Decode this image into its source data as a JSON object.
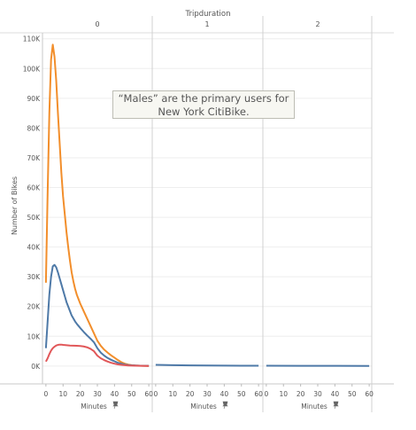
{
  "chart_data": {
    "type": "line",
    "title": "",
    "column_header": "Tripduration",
    "panels": [
      "0",
      "1",
      "2"
    ],
    "ylabel": "Number of Bikes",
    "xlabel": "Minutes",
    "ylim": [
      -6000,
      112000
    ],
    "xlim": [
      -2,
      62
    ],
    "y_ticks": [
      0,
      10000,
      20000,
      30000,
      40000,
      50000,
      60000,
      70000,
      80000,
      90000,
      100000,
      110000
    ],
    "y_tick_labels": [
      "0K",
      "10K",
      "20K",
      "30K",
      "40K",
      "50K",
      "60K",
      "70K",
      "80K",
      "90K",
      "100K",
      "110K"
    ],
    "x_ticks": [
      0,
      10,
      20,
      30,
      40,
      50,
      60
    ],
    "grid": true,
    "annotation": [
      "“Males” are the primary users for",
      "New York CitiBike."
    ],
    "series": [
      {
        "color": "#f28e2b",
        "points": [
          [
            0,
            28000
          ],
          [
            1,
            58000
          ],
          [
            2,
            85000
          ],
          [
            3,
            103000
          ],
          [
            4,
            108000
          ],
          [
            5,
            104000
          ],
          [
            6,
            96000
          ],
          [
            7,
            85000
          ],
          [
            8,
            75000
          ],
          [
            9,
            65000
          ],
          [
            10,
            57000
          ],
          [
            11,
            51000
          ],
          [
            12,
            45000
          ],
          [
            13,
            40000
          ],
          [
            14,
            35500
          ],
          [
            15,
            31500
          ],
          [
            16,
            28500
          ],
          [
            17,
            26000
          ],
          [
            18,
            24000
          ],
          [
            19,
            22500
          ],
          [
            20,
            21000
          ],
          [
            22,
            18500
          ],
          [
            24,
            16000
          ],
          [
            26,
            13500
          ],
          [
            28,
            11000
          ],
          [
            30,
            8500
          ],
          [
            32,
            6800
          ],
          [
            34,
            5500
          ],
          [
            36,
            4500
          ],
          [
            38,
            3600
          ],
          [
            40,
            2800
          ],
          [
            42,
            2000
          ],
          [
            44,
            1300
          ],
          [
            46,
            800
          ],
          [
            48,
            500
          ],
          [
            50,
            300
          ],
          [
            52,
            200
          ],
          [
            55,
            100
          ],
          [
            60,
            50
          ]
        ]
      },
      {
        "color": "#4e79a7",
        "points": [
          [
            0,
            6000
          ],
          [
            1,
            15000
          ],
          [
            2,
            24000
          ],
          [
            3,
            30000
          ],
          [
            4,
            33500
          ],
          [
            5,
            34000
          ],
          [
            6,
            33200
          ],
          [
            7,
            31500
          ],
          [
            8,
            29500
          ],
          [
            9,
            27500
          ],
          [
            10,
            25500
          ],
          [
            11,
            23500
          ],
          [
            12,
            21500
          ],
          [
            13,
            20000
          ],
          [
            14,
            18500
          ],
          [
            15,
            17000
          ],
          [
            16,
            16000
          ],
          [
            17,
            15000
          ],
          [
            18,
            14200
          ],
          [
            19,
            13500
          ],
          [
            20,
            12800
          ],
          [
            22,
            11500
          ],
          [
            24,
            10300
          ],
          [
            26,
            9200
          ],
          [
            28,
            8000
          ],
          [
            30,
            6000
          ],
          [
            32,
            4500
          ],
          [
            34,
            3500
          ],
          [
            36,
            2700
          ],
          [
            38,
            2100
          ],
          [
            40,
            1600
          ],
          [
            42,
            1100
          ],
          [
            44,
            800
          ],
          [
            46,
            500
          ],
          [
            48,
            350
          ],
          [
            50,
            250
          ],
          [
            55,
            120
          ],
          [
            60,
            80
          ]
        ]
      },
      {
        "color": "#e15759",
        "points": [
          [
            0,
            1500
          ],
          [
            1,
            2600
          ],
          [
            2,
            4000
          ],
          [
            3,
            5200
          ],
          [
            4,
            6000
          ],
          [
            5,
            6500
          ],
          [
            6,
            6900
          ],
          [
            7,
            7100
          ],
          [
            8,
            7200
          ],
          [
            9,
            7200
          ],
          [
            10,
            7100
          ],
          [
            12,
            7000
          ],
          [
            14,
            6900
          ],
          [
            16,
            6850
          ],
          [
            18,
            6800
          ],
          [
            20,
            6750
          ],
          [
            22,
            6600
          ],
          [
            24,
            6300
          ],
          [
            26,
            5800
          ],
          [
            28,
            5000
          ],
          [
            30,
            3500
          ],
          [
            32,
            2600
          ],
          [
            34,
            2000
          ],
          [
            36,
            1500
          ],
          [
            38,
            1100
          ],
          [
            40,
            800
          ],
          [
            42,
            550
          ],
          [
            44,
            400
          ],
          [
            46,
            280
          ],
          [
            48,
            200
          ],
          [
            50,
            150
          ],
          [
            55,
            80
          ],
          [
            60,
            50
          ]
        ]
      },
      {
        "panel": 1,
        "color": "#4e79a7",
        "points": [
          [
            0,
            400
          ],
          [
            10,
            280
          ],
          [
            20,
            220
          ],
          [
            30,
            180
          ],
          [
            40,
            150
          ],
          [
            50,
            120
          ],
          [
            60,
            100
          ]
        ]
      },
      {
        "panel": 2,
        "color": "#4e79a7",
        "points": [
          [
            0,
            90
          ],
          [
            20,
            70
          ],
          [
            40,
            60
          ],
          [
            60,
            50
          ]
        ]
      }
    ]
  }
}
